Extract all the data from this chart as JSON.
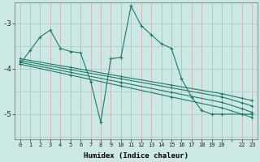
{
  "xlabel": "Humidex (Indice chaleur)",
  "bg_color": "#cce8e4",
  "line_color": "#1a7a6e",
  "xlim": [
    -0.5,
    23.5
  ],
  "ylim": [
    -5.55,
    -2.55
  ],
  "yticks": [
    -5,
    -4,
    -3
  ],
  "xtick_labels": [
    "0",
    "1",
    "2",
    "3",
    "4",
    "5",
    "6",
    "7",
    "8",
    "9",
    "10",
    "11",
    "12",
    "13",
    "14",
    "15",
    "16",
    "17",
    "18",
    "19",
    "20",
    "",
    "22",
    "23"
  ],
  "diag_lines": [
    {
      "x": [
        0,
        5,
        10,
        15,
        20,
        22,
        23
      ],
      "y": [
        -3.78,
        -3.97,
        -4.17,
        -4.36,
        -4.55,
        -4.65,
        -4.7
      ]
    },
    {
      "x": [
        0,
        5,
        10,
        15,
        20,
        22,
        23
      ],
      "y": [
        -3.82,
        -4.02,
        -4.22,
        -4.42,
        -4.62,
        -4.75,
        -4.82
      ]
    },
    {
      "x": [
        0,
        5,
        10,
        15,
        20,
        22,
        23
      ],
      "y": [
        -3.86,
        -4.08,
        -4.3,
        -4.52,
        -4.74,
        -4.88,
        -4.96
      ]
    },
    {
      "x": [
        0,
        5,
        10,
        15,
        20,
        22,
        23
      ],
      "y": [
        -3.9,
        -4.14,
        -4.38,
        -4.62,
        -4.86,
        -5.0,
        -5.07
      ]
    }
  ],
  "main_x": [
    0,
    1,
    2,
    3,
    4,
    5,
    6,
    7,
    8,
    9,
    10,
    11,
    12,
    13,
    14,
    15,
    16,
    17,
    18,
    19,
    20,
    22,
    23
  ],
  "main_y": [
    -3.9,
    -3.6,
    -3.3,
    -3.15,
    -3.55,
    -3.62,
    -3.65,
    -4.28,
    -5.18,
    -3.78,
    -3.75,
    -2.62,
    -3.05,
    -3.25,
    -3.45,
    -3.55,
    -4.22,
    -4.62,
    -4.92,
    -5.0,
    -5.0,
    -5.0,
    -5.0
  ]
}
